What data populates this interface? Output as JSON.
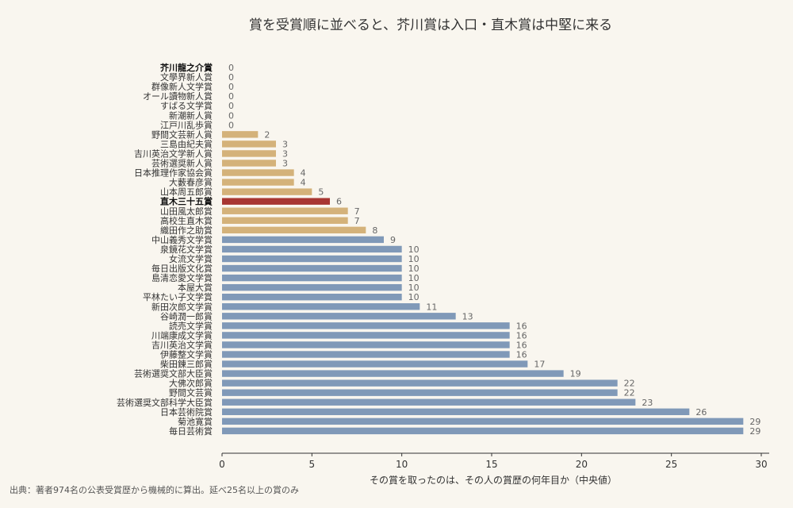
{
  "chart_data": {
    "type": "bar",
    "orientation": "horizontal",
    "title": "賞を受賞順に並べると、芥川賞は入口・直木賞は中堅に来る",
    "xlabel": "その賞を取ったのは、その人の賞歴の何年目か（中央値）",
    "ylabel": "",
    "xlim": [
      0,
      30
    ],
    "xticks": [
      0,
      5,
      10,
      15,
      20,
      25,
      30
    ],
    "grid": false,
    "source": "出典：著者974名の公表受賞歴から機械的に算出。延べ25名以上の賞のみ",
    "colors": {
      "early": "#d4b27a",
      "late": "#8099b8",
      "highlight": "#a83632"
    },
    "categories": [
      "芥川龍之介賞",
      "文學界新人賞",
      "群像新人文学賞",
      "オール讀物新人賞",
      "すばる文学賞",
      "新潮新人賞",
      "江戸川乱歩賞",
      "野間文芸新人賞",
      "三島由紀夫賞",
      "吉川英治文学新人賞",
      "芸術選奨新人賞",
      "日本推理作家協会賞",
      "大藪春彦賞",
      "山本周五郎賞",
      "直木三十五賞",
      "山田風太郎賞",
      "高校生直木賞",
      "織田作之助賞",
      "中山義秀文学賞",
      "泉鏡花文学賞",
      "女流文学賞",
      "毎日出版文化賞",
      "島清恋愛文学賞",
      "本屋大賞",
      "平林たい子文学賞",
      "新田次郎文学賞",
      "谷崎潤一郎賞",
      "読売文学賞",
      "川端康成文学賞",
      "吉川英治文学賞",
      "伊藤整文学賞",
      "柴田錬三郎賞",
      "芸術選奨文部大臣賞",
      "大佛次郎賞",
      "野間文芸賞",
      "芸術選奨文部科学大臣賞",
      "日本芸術院賞",
      "菊池寛賞",
      "毎日芸術賞"
    ],
    "values": [
      0,
      0,
      0,
      0,
      0,
      0,
      0,
      2,
      3,
      3,
      3,
      4,
      4,
      5,
      6,
      7,
      7,
      8,
      9,
      10,
      10,
      10,
      10,
      10,
      10,
      11,
      13,
      16,
      16,
      16,
      16,
      17,
      19,
      22,
      22,
      23,
      26,
      29,
      29
    ],
    "value_labels": [
      "0",
      "0",
      "0",
      "0",
      "0",
      "0",
      "0",
      "2",
      "3",
      "3",
      "3",
      "4",
      "4",
      "5",
      "6",
      "7",
      "7",
      "8",
      "9",
      "10",
      "10",
      "10",
      "10",
      "10",
      "10",
      "11",
      "13",
      "16",
      "16",
      "16",
      "16",
      "17",
      "19",
      "22",
      "22",
      "23",
      "26",
      "29",
      "29"
    ],
    "groups": [
      "early",
      "early",
      "early",
      "early",
      "early",
      "early",
      "early",
      "early",
      "early",
      "early",
      "early",
      "early",
      "early",
      "early",
      "highlight",
      "early",
      "early",
      "early",
      "late",
      "late",
      "late",
      "late",
      "late",
      "late",
      "late",
      "late",
      "late",
      "late",
      "late",
      "late",
      "late",
      "late",
      "late",
      "late",
      "late",
      "late",
      "late",
      "late",
      "late"
    ],
    "bold_categories": [
      "芥川龍之介賞",
      "直木三十五賞"
    ]
  }
}
